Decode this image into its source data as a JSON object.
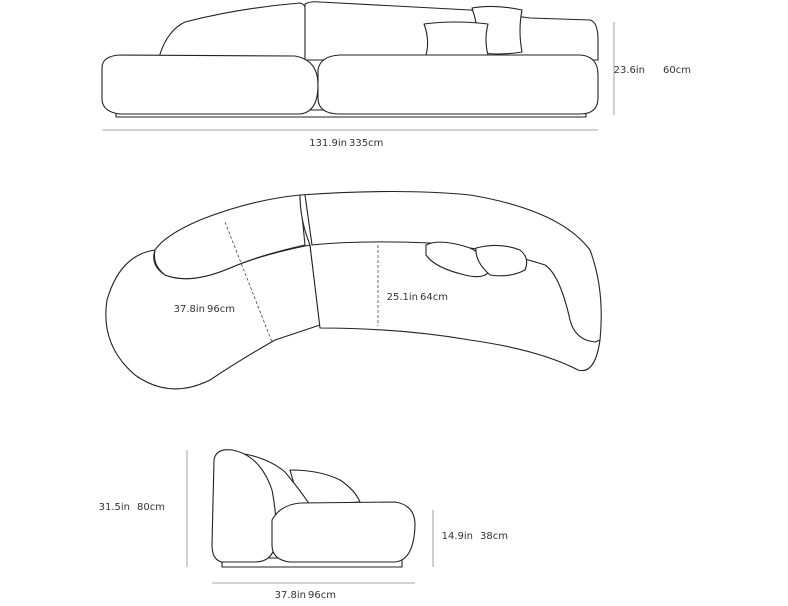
{
  "front_view": {
    "height": {
      "imperial": "23.6in",
      "metric": "60cm"
    },
    "width": {
      "imperial": "131.9in",
      "metric": "335cm"
    }
  },
  "top_view": {
    "depth_left": {
      "imperial": "37.8in",
      "metric": "96cm"
    },
    "seat_depth": {
      "imperial": "25.1in",
      "metric": "64cm"
    }
  },
  "side_view": {
    "height": {
      "imperial": "31.5in",
      "metric": "80cm"
    },
    "seat_height": {
      "imperial": "14.9in",
      "metric": "38cm"
    },
    "depth": {
      "imperial": "37.8in",
      "metric": "96cm"
    }
  }
}
